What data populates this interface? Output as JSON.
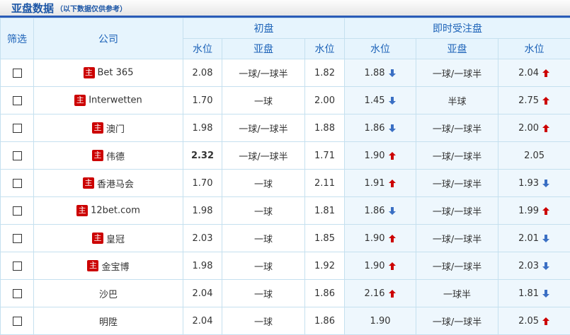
{
  "header": {
    "title": "亚盘数据",
    "subtitle": "（以下数据仅供参考）"
  },
  "columns": {
    "filter": "筛选",
    "company": "公司",
    "initial": "初盘",
    "live": "即时受注盘",
    "water": "水位",
    "handicap": "亚盘"
  },
  "colors": {
    "up": "#cc0000",
    "down": "#3a6fc4",
    "badge": "#cc0000"
  },
  "badge_label": "主",
  "rows": [
    {
      "company": "Bet 365",
      "badge": true,
      "i1": "2.08",
      "ih": "一球/一球半",
      "i2": "1.82",
      "l1": "1.88",
      "l1t": "down",
      "lh": "一球/一球半",
      "l2": "2.04",
      "l2t": "up"
    },
    {
      "company": "Interwetten",
      "badge": true,
      "i1": "1.70",
      "ih": "一球",
      "i2": "2.00",
      "l1": "1.45",
      "l1t": "down",
      "lh": "半球",
      "l2": "2.75",
      "l2t": "up"
    },
    {
      "company": "澳门",
      "badge": true,
      "i1": "1.98",
      "ih": "一球/一球半",
      "i2": "1.88",
      "l1": "1.86",
      "l1t": "down",
      "lh": "一球/一球半",
      "l2": "2.00",
      "l2t": "up"
    },
    {
      "company": "伟德",
      "badge": true,
      "i1": "2.32",
      "i1bold": true,
      "ih": "一球/一球半",
      "i2": "1.71",
      "l1": "1.90",
      "l1t": "up",
      "lh": "一球/一球半",
      "l2": "2.05",
      "l2t": ""
    },
    {
      "company": "香港马会",
      "badge": true,
      "i1": "1.70",
      "ih": "一球",
      "i2": "2.11",
      "l1": "1.91",
      "l1t": "up",
      "lh": "一球/一球半",
      "l2": "1.93",
      "l2t": "down"
    },
    {
      "company": "12bet.com",
      "badge": true,
      "i1": "1.98",
      "ih": "一球",
      "i2": "1.81",
      "l1": "1.86",
      "l1t": "down",
      "lh": "一球/一球半",
      "l2": "1.99",
      "l2t": "up"
    },
    {
      "company": "皇冠",
      "badge": true,
      "i1": "2.03",
      "ih": "一球",
      "i2": "1.85",
      "l1": "1.90",
      "l1t": "up",
      "lh": "一球/一球半",
      "l2": "2.01",
      "l2t": "down"
    },
    {
      "company": "金宝博",
      "badge": true,
      "i1": "1.98",
      "ih": "一球",
      "i2": "1.92",
      "l1": "1.90",
      "l1t": "up",
      "lh": "一球/一球半",
      "l2": "2.03",
      "l2t": "down"
    },
    {
      "company": "沙巴",
      "badge": false,
      "i1": "2.04",
      "ih": "一球",
      "i2": "1.86",
      "l1": "2.16",
      "l1t": "up",
      "lh": "一球半",
      "l2": "1.81",
      "l2t": "down"
    },
    {
      "company": "明陞",
      "badge": false,
      "i1": "2.04",
      "ih": "一球",
      "i2": "1.86",
      "l1": "1.90",
      "l1t": "",
      "lh": "一球/一球半",
      "l2": "2.05",
      "l2t": "up"
    }
  ]
}
